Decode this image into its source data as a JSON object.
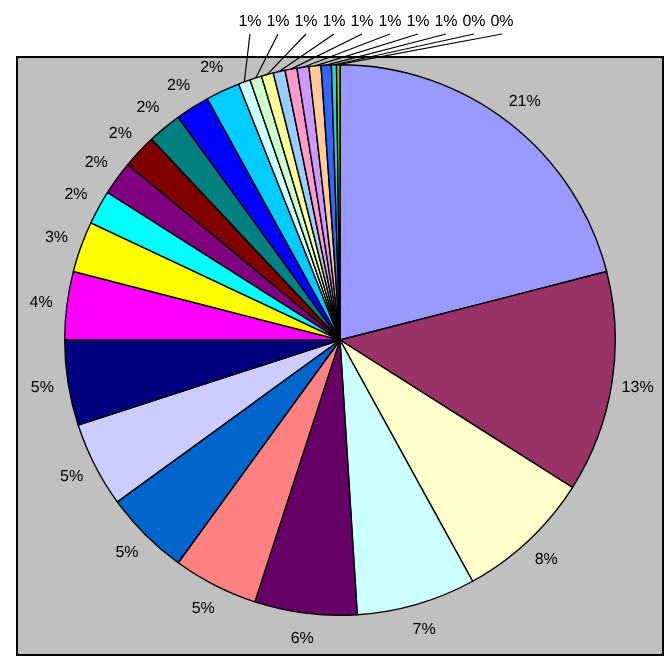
{
  "chart_data": {
    "type": "pie",
    "categories": [
      null,
      null,
      null,
      null,
      null,
      null,
      null,
      null,
      null,
      null,
      null,
      null,
      null,
      null,
      null,
      null,
      null,
      null,
      null,
      null,
      null,
      null,
      null,
      null,
      null,
      null,
      null
    ],
    "values": [
      21,
      13,
      8,
      7,
      6,
      5,
      5,
      5,
      5,
      4,
      3,
      2,
      2,
      2,
      2,
      2,
      2,
      0.7,
      0.7,
      0.7,
      0.7,
      0.7,
      0.7,
      0.7,
      0.6,
      0.3,
      0.2
    ],
    "value_labels": [
      "21%",
      "13%",
      "8%",
      "7%",
      "6%",
      "5%",
      "5%",
      "5%",
      "5%",
      "4%",
      "3%",
      "2%",
      "2%",
      "2%",
      "2%",
      "2%",
      "2%",
      "1%",
      "1%",
      "1%",
      "1%",
      "1%",
      "1%",
      "1%",
      "1%",
      "0%",
      "0%"
    ],
    "colors": [
      "#9999ff",
      "#993366",
      "#ffffcc",
      "#ccffff",
      "#660066",
      "#ff8080",
      "#0066cc",
      "#ccccff",
      "#000080",
      "#ff00ff",
      "#ffff00",
      "#00ffff",
      "#800080",
      "#800000",
      "#008080",
      "#0000ff",
      "#00ccff",
      "#ccffff",
      "#ccffcc",
      "#ffff99",
      "#99ccff",
      "#ff99cc",
      "#cc99ff",
      "#ffcc99",
      "#3366ff",
      "#33cccc",
      "#99cc00"
    ],
    "legend": false
  }
}
